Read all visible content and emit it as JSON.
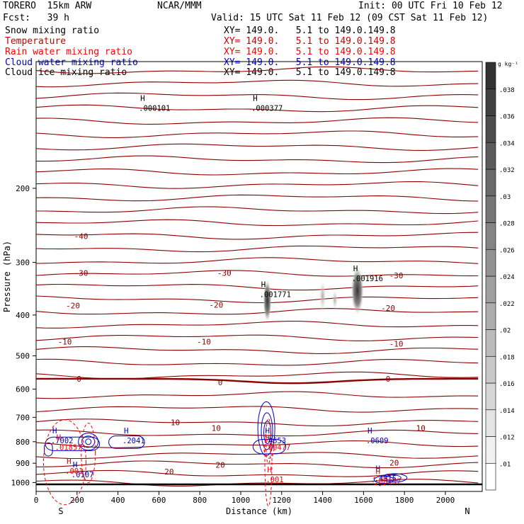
{
  "header": {
    "model": "TORERO  15km ARW",
    "org": "NCAR/MMM",
    "init": "Init: 00 UTC Fri 10 Feb 12",
    "fcst": "Fcst:   39 h",
    "valid": "Valid: 15 UTC Sat 11 Feb 12 (09 CST Sat 11 Feb 12)"
  },
  "fields": [
    {
      "name": "Snow mixing ratio",
      "xy": "XY= 149.0.   5.1 to 149.0.149.8",
      "color": "#000000"
    },
    {
      "name": "Temperature",
      "xy": "XY= 149.0.   5.1 to 149.0.149.8",
      "color": "#cc0000"
    },
    {
      "name": "Rain water mixing ratio",
      "xy": "XY= 149.0.   5.1 to 149.0.149.8",
      "color": "#ff0000"
    },
    {
      "name": "Cloud water mixing ratio",
      "xy": "XY= 149.0.   5.1 to 149.0.149.8",
      "color": "#0000cc"
    },
    {
      "name": "Cloud ice mixing ratio",
      "xy": "XY= 149.0.   5.1 to 149.0.149.8",
      "color": "#000000"
    }
  ],
  "chart_data": {
    "type": "contour cross-section",
    "xlabel": "Distance (km)",
    "ylabel": "Pressure (hPa)",
    "x_ticks": [
      0,
      200,
      400,
      600,
      800,
      1000,
      1200,
      1400,
      1600,
      1800,
      2000
    ],
    "y_ticks": [
      200,
      300,
      400,
      500,
      600,
      700,
      800,
      900,
      1000
    ],
    "xlim": [
      0,
      2180
    ],
    "ylim": [
      1050,
      100
    ],
    "y_scale": "log",
    "x_end_labels": {
      "left": "S",
      "right": "N"
    },
    "colorbar": {
      "unit": "g kg⁻¹",
      "ticks": [
        ".01",
        ".012",
        ".014",
        ".016",
        ".018",
        ".02",
        ".022",
        ".024",
        ".026",
        ".028",
        ".03",
        ".032",
        ".034",
        ".036",
        ".038"
      ]
    },
    "temperature_labels": [
      {
        "text": "-40",
        "x": 220,
        "p": 260
      },
      {
        "text": "-30",
        "x": 220,
        "p": 318
      },
      {
        "text": "-30",
        "x": 920,
        "p": 318
      },
      {
        "text": "-30",
        "x": 1760,
        "p": 322
      },
      {
        "text": "-20",
        "x": 180,
        "p": 380
      },
      {
        "text": "-20",
        "x": 880,
        "p": 378
      },
      {
        "text": "-20",
        "x": 1720,
        "p": 385
      },
      {
        "text": "-10",
        "x": 140,
        "p": 463
      },
      {
        "text": "-10",
        "x": 820,
        "p": 463
      },
      {
        "text": "-10",
        "x": 1760,
        "p": 468
      },
      {
        "text": "0",
        "x": 210,
        "p": 567
      },
      {
        "text": "0",
        "x": 900,
        "p": 578
      },
      {
        "text": "0",
        "x": 1720,
        "p": 567
      },
      {
        "text": "10",
        "x": 680,
        "p": 720
      },
      {
        "text": "10",
        "x": 880,
        "p": 742
      },
      {
        "text": "10",
        "x": 1880,
        "p": 742
      },
      {
        "text": "20",
        "x": 650,
        "p": 942
      },
      {
        "text": "20",
        "x": 900,
        "p": 908
      },
      {
        "text": "20",
        "x": 1750,
        "p": 898
      }
    ],
    "maxima_labels": [
      {
        "text": ".000101",
        "x": 530,
        "p": 130,
        "color": "#000000"
      },
      {
        "text": ".000377",
        "x": 1080,
        "p": 130,
        "color": "#000000"
      },
      {
        "text": ".001771",
        "x": 1120,
        "p": 360,
        "color": "#000000"
      },
      {
        "text": ".001916",
        "x": 1570,
        "p": 330,
        "color": "#000000"
      },
      {
        "text": ".7002",
        "x": 100,
        "p": 800,
        "color": "#0000cc"
      },
      {
        "text": ".2041",
        "x": 450,
        "p": 800,
        "color": "#0000cc"
      },
      {
        "text": ".4653",
        "x": 1140,
        "p": 800,
        "color": "#0000cc"
      },
      {
        "text": ".0609",
        "x": 1640,
        "p": 800,
        "color": "#0000cc"
      },
      {
        "text": ".0107",
        "x": 200,
        "p": 965,
        "color": "#0000cc"
      },
      {
        "text": ".4915",
        "x": 1680,
        "p": 985,
        "color": "#0000cc"
      },
      {
        "text": ".01857",
        "x": 120,
        "p": 830,
        "color": "#ff0000"
      },
      {
        "text": ".00477",
        "x": 1140,
        "p": 830,
        "color": "#ff0000"
      },
      {
        "text": ".001",
        "x": 170,
        "p": 945,
        "color": "#ff0000"
      },
      {
        "text": ".001",
        "x": 1150,
        "p": 990,
        "color": "#ff0000"
      },
      {
        "text": ".00137",
        "x": 1680,
        "p": 1000,
        "color": "#ff0000"
      }
    ],
    "colors": {
      "temperature": "#8b0000",
      "zero_isotherm": "#8b0000",
      "cloud_water": "#0000cc",
      "rain_water": "#ff0000",
      "snow": "#000000"
    }
  }
}
